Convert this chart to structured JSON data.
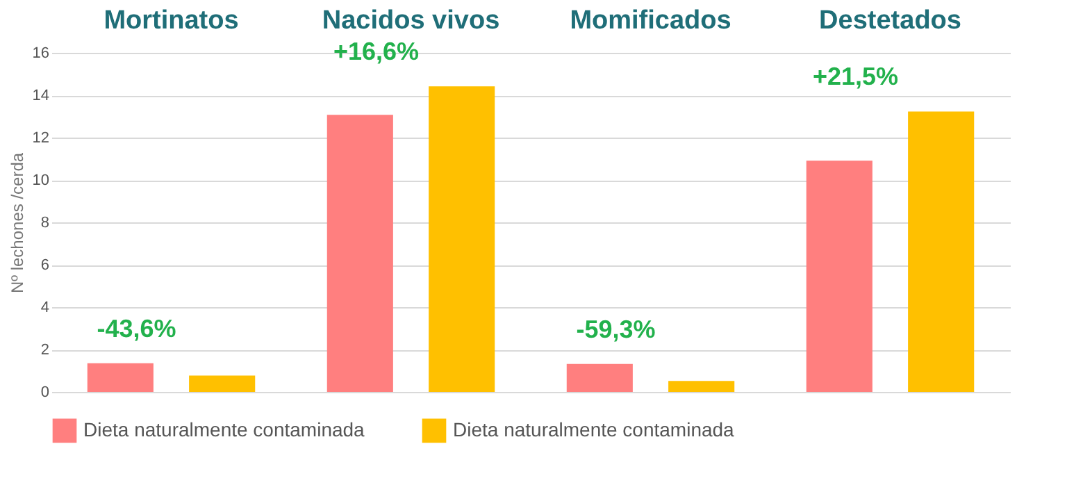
{
  "chart_data": {
    "type": "bar",
    "categories": [
      "Mortinatos",
      "Nacidos vivos",
      "Momificados",
      "Destetados"
    ],
    "ylabel": "Nº lechones /cerda",
    "series": [
      {
        "name": "Dieta naturalmente contaminada",
        "color": "#ff7f7f",
        "values": [
          1.35,
          13.07,
          1.32,
          10.91
        ]
      },
      {
        "name": "Dieta naturalmente contaminada",
        "color": "#ffc000",
        "values": [
          0.77,
          14.42,
          0.52,
          13.23
        ]
      }
    ],
    "ylim": [
      0,
      16
    ],
    "yticks": [
      0,
      2,
      4,
      6,
      8,
      10,
      12,
      14,
      16
    ],
    "grid": "y",
    "legend": "bottom",
    "annotations": [
      "-43,6%",
      "+16,6%",
      "-59,3%",
      "+21,5%"
    ]
  }
}
